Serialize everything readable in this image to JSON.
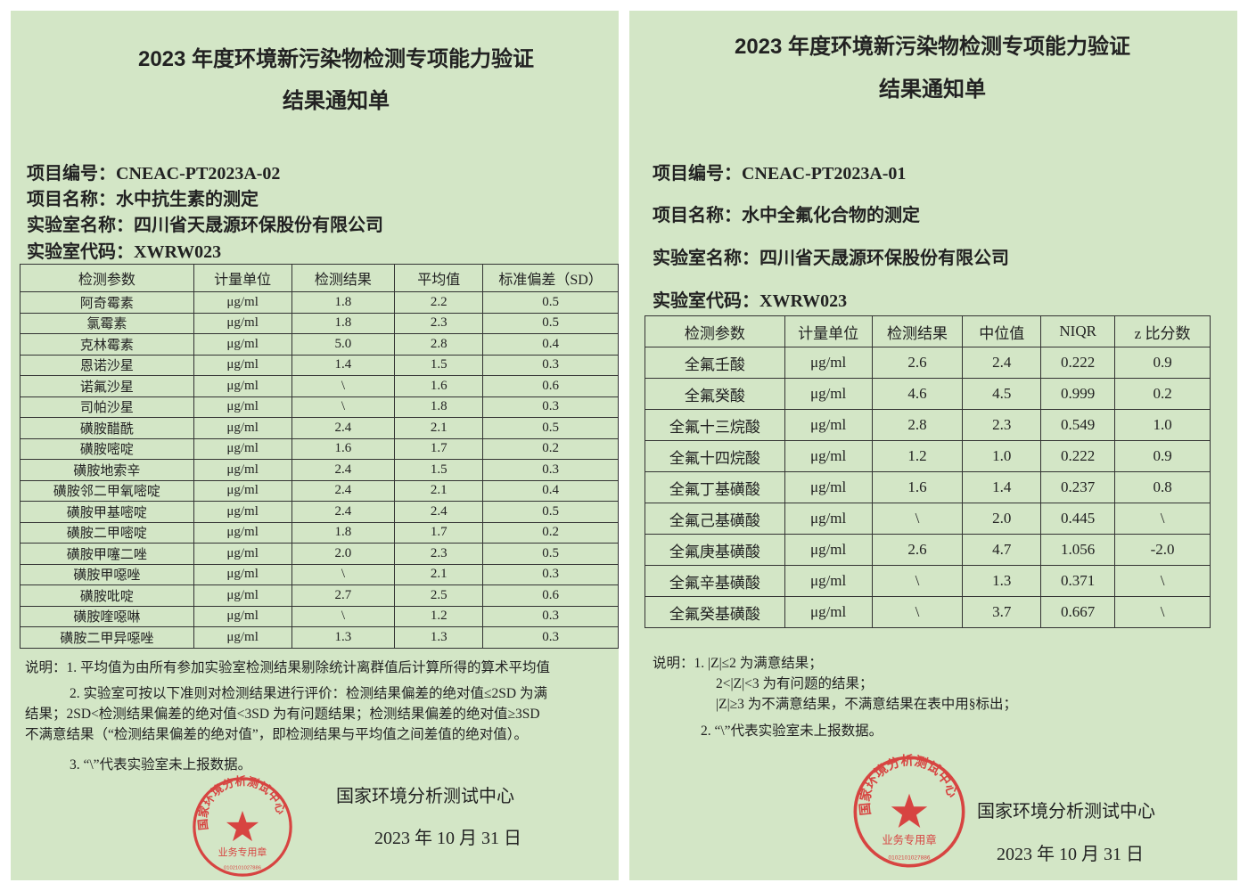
{
  "left": {
    "title_line1": "2023 年度环境新污染物检测专项能力验证",
    "title_line2": "结果通知单",
    "project_no": "项目编号：CNEAC-PT2023A-02",
    "project_name": "项目名称：水中抗生素的测定",
    "lab_name": "实验室名称：四川省天晟源环保股份有限公司",
    "lab_code": "实验室代码：XWRW023",
    "table": {
      "headers": [
        "检测参数",
        "计量单位",
        "检测结果",
        "平均值",
        "标准偏差（SD）"
      ],
      "rows": [
        [
          "阿奇霉素",
          "μg/ml",
          "1.8",
          "2.2",
          "0.5"
        ],
        [
          "氯霉素",
          "μg/ml",
          "1.8",
          "2.3",
          "0.5"
        ],
        [
          "克林霉素",
          "μg/ml",
          "5.0",
          "2.8",
          "0.4"
        ],
        [
          "恩诺沙星",
          "μg/ml",
          "1.4",
          "1.5",
          "0.3"
        ],
        [
          "诺氟沙星",
          "μg/ml",
          "\\",
          "1.6",
          "0.6"
        ],
        [
          "司帕沙星",
          "μg/ml",
          "\\",
          "1.8",
          "0.3"
        ],
        [
          "磺胺醋酰",
          "μg/ml",
          "2.4",
          "2.1",
          "0.5"
        ],
        [
          "磺胺嘧啶",
          "μg/ml",
          "1.6",
          "1.7",
          "0.2"
        ],
        [
          "磺胺地索辛",
          "μg/ml",
          "2.4",
          "1.5",
          "0.3"
        ],
        [
          "磺胺邻二甲氧嘧啶",
          "μg/ml",
          "2.4",
          "2.1",
          "0.4"
        ],
        [
          "磺胺甲基嘧啶",
          "μg/ml",
          "2.4",
          "2.4",
          "0.5"
        ],
        [
          "磺胺二甲嘧啶",
          "μg/ml",
          "1.8",
          "1.7",
          "0.2"
        ],
        [
          "磺胺甲噻二唑",
          "μg/ml",
          "2.0",
          "2.3",
          "0.5"
        ],
        [
          "磺胺甲噁唑",
          "μg/ml",
          "\\",
          "2.1",
          "0.3"
        ],
        [
          "磺胺吡啶",
          "μg/ml",
          "2.7",
          "2.5",
          "0.6"
        ],
        [
          "磺胺喹噁啉",
          "μg/ml",
          "\\",
          "1.2",
          "0.3"
        ],
        [
          "磺胺二甲异噁唑",
          "μg/ml",
          "1.3",
          "1.3",
          "0.3"
        ]
      ]
    },
    "notes": [
      "说明：1. 平均值为由所有参加实验室检测结果剔除统计离群值后计算所得的算术平均值",
      "2. 实验室可按以下准则对检测结果进行评价：检测结果偏差的绝对值≤2SD 为满",
      "结果；2SD<检测结果偏差的绝对值<3SD 为有问题结果；检测结果偏差的绝对值≥3SD",
      "不满意结果（“检测结果偏差的绝对值”，即检测结果与平均值之间差值的绝对值）。",
      "3. “\\”代表实验室未上报数据。"
    ],
    "signature": "国家环境分析测试中心",
    "date": "2023 年 10 月 31 日",
    "stamp": {
      "text": "国家环境分析测试中心",
      "sub": "业务专用章",
      "number": "0102101027886",
      "color": "#d8282a"
    }
  },
  "right": {
    "title_line1": "2023 年度环境新污染物检测专项能力验证",
    "title_line2": "结果通知单",
    "project_no": "项目编号：CNEAC-PT2023A-01",
    "project_name": "项目名称：水中全氟化合物的测定",
    "lab_name": "实验室名称：四川省天晟源环保股份有限公司",
    "lab_code": "实验室代码：XWRW023",
    "table": {
      "headers": [
        "检测参数",
        "计量单位",
        "检测结果",
        "中位值",
        "NIQR",
        "z 比分数"
      ],
      "rows": [
        [
          "全氟壬酸",
          "μg/ml",
          "2.6",
          "2.4",
          "0.222",
          "0.9"
        ],
        [
          "全氟癸酸",
          "μg/ml",
          "4.6",
          "4.5",
          "0.999",
          "0.2"
        ],
        [
          "全氟十三烷酸",
          "μg/ml",
          "2.8",
          "2.3",
          "0.549",
          "1.0"
        ],
        [
          "全氟十四烷酸",
          "μg/ml",
          "1.2",
          "1.0",
          "0.222",
          "0.9"
        ],
        [
          "全氟丁基磺酸",
          "μg/ml",
          "1.6",
          "1.4",
          "0.237",
          "0.8"
        ],
        [
          "全氟己基磺酸",
          "μg/ml",
          "\\",
          "2.0",
          "0.445",
          "\\"
        ],
        [
          "全氟庚基磺酸",
          "μg/ml",
          "2.6",
          "4.7",
          "1.056",
          "-2.0"
        ],
        [
          "全氟辛基磺酸",
          "μg/ml",
          "\\",
          "1.3",
          "0.371",
          "\\"
        ],
        [
          "全氟癸基磺酸",
          "μg/ml",
          "\\",
          "3.7",
          "0.667",
          "\\"
        ]
      ]
    },
    "notes": [
      "说明：1. |Z|≤2 为满意结果；",
      "2<|Z|<3 为有问题的结果；",
      "|Z|≥3 为不满意结果，不满意结果在表中用§标出；",
      "2. “\\”代表实验室未上报数据。"
    ],
    "signature": "国家环境分析测试中心",
    "date": "2023 年 10 月 31 日",
    "stamp": {
      "text": "国家环境分析测试中心",
      "sub": "业务专用章",
      "number": "0102101027886",
      "color": "#d8282a"
    }
  }
}
